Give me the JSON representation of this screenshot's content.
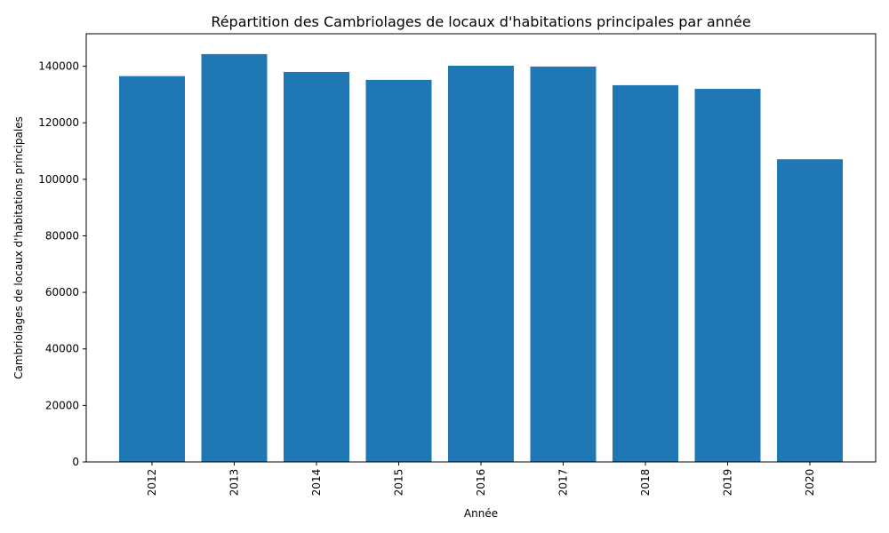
{
  "chart_data": {
    "type": "bar",
    "title": "Répartition des Cambriolages de locaux d'habitations principales par année",
    "xlabel": "Année",
    "ylabel": "Cambriolages de locaux d'habitations principales",
    "categories": [
      "2012",
      "2013",
      "2014",
      "2015",
      "2016",
      "2017",
      "2018",
      "2019",
      "2020"
    ],
    "values": [
      136500,
      144300,
      138000,
      135200,
      140200,
      139900,
      133300,
      132000,
      107100
    ],
    "ylim": [
      0,
      151500
    ],
    "yticks": [
      0,
      20000,
      40000,
      60000,
      80000,
      100000,
      120000,
      140000
    ],
    "bar_color": "#1f77b4",
    "grid": false,
    "legend": "none",
    "x_tick_rotation": "vertical"
  }
}
